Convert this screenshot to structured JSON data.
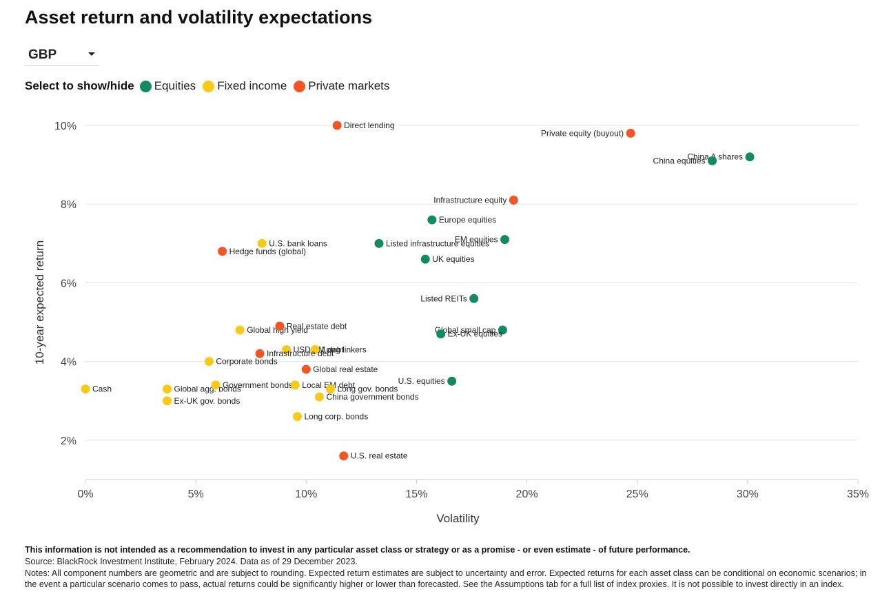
{
  "title": "Asset return and volatility expectations",
  "currency": {
    "selected": "GBP"
  },
  "legend": {
    "prompt": "Select to show/hide",
    "items": [
      {
        "label": "Equities",
        "color": "#128a62"
      },
      {
        "label": "Fixed income",
        "color": "#f7c919"
      },
      {
        "label": "Private markets",
        "color": "#f25626"
      }
    ]
  },
  "chart_data": {
    "type": "scatter",
    "xlabel": "Volatility",
    "ylabel": "10-year expected return",
    "xlim": [
      0,
      35
    ],
    "ylim": [
      1,
      10
    ],
    "x_ticks": [
      "0%",
      "5%",
      "10%",
      "15%",
      "20%",
      "25%",
      "30%",
      "35%"
    ],
    "y_ticks": [
      "2%",
      "4%",
      "6%",
      "8%",
      "10%"
    ],
    "grid": "horizontal",
    "series": [
      {
        "name": "Equities",
        "color": "#128a62",
        "points": [
          {
            "label": "China A shares",
            "x": 30.1,
            "y": 9.2
          },
          {
            "label": "China equities",
            "x": 28.4,
            "y": 9.1
          },
          {
            "label": "Europe equities",
            "x": 15.7,
            "y": 7.6
          },
          {
            "label": "EM equities",
            "x": 19.0,
            "y": 7.1
          },
          {
            "label": "Listed infrastructure equities",
            "x": 13.3,
            "y": 7.0
          },
          {
            "label": "UK equities",
            "x": 15.4,
            "y": 6.6
          },
          {
            "label": "Listed REITs",
            "x": 17.6,
            "y": 5.6
          },
          {
            "label": "Global small cap",
            "x": 18.9,
            "y": 4.8
          },
          {
            "label": "Ex-UK equities",
            "x": 16.1,
            "y": 4.7
          },
          {
            "label": "U.S. equities",
            "x": 16.6,
            "y": 3.5
          }
        ]
      },
      {
        "name": "Fixed income",
        "color": "#f7c919",
        "points": [
          {
            "label": "U.S. bank loans",
            "x": 8.0,
            "y": 7.0
          },
          {
            "label": "Global high yield",
            "x": 7.0,
            "y": 4.8
          },
          {
            "label": "USD EM debt",
            "x": 9.1,
            "y": 4.3
          },
          {
            "label": "Long linkers",
            "x": 10.4,
            "y": 4.3
          },
          {
            "label": "Corporate bonds",
            "x": 5.6,
            "y": 4.0
          },
          {
            "label": "Cash",
            "x": 0.0,
            "y": 3.3
          },
          {
            "label": "Global agg. bonds",
            "x": 3.7,
            "y": 3.3
          },
          {
            "label": "Government bonds",
            "x": 5.9,
            "y": 3.4
          },
          {
            "label": "Local EM debt",
            "x": 9.5,
            "y": 3.4
          },
          {
            "label": "Long gov. bonds",
            "x": 11.1,
            "y": 3.3
          },
          {
            "label": "China government bonds",
            "x": 10.6,
            "y": 3.1
          },
          {
            "label": "Ex-UK gov. bonds",
            "x": 3.7,
            "y": 3.0
          },
          {
            "label": "Long corp. bonds",
            "x": 9.6,
            "y": 2.6
          }
        ]
      },
      {
        "name": "Private markets",
        "color": "#f25626",
        "points": [
          {
            "label": "Direct lending",
            "x": 11.4,
            "y": 10.0
          },
          {
            "label": "Private equity (buyout)",
            "x": 24.7,
            "y": 9.8
          },
          {
            "label": "Infrastructure equity",
            "x": 19.4,
            "y": 8.1
          },
          {
            "label": "Hedge funds (global)",
            "x": 6.2,
            "y": 6.8
          },
          {
            "label": "Real estate debt",
            "x": 8.8,
            "y": 4.9
          },
          {
            "label": "Infrastructure debt",
            "x": 7.9,
            "y": 4.2
          },
          {
            "label": "Global real estate",
            "x": 10.0,
            "y": 3.8
          },
          {
            "label": "U.S. real estate",
            "x": 11.7,
            "y": 1.6
          }
        ]
      }
    ]
  },
  "footer": {
    "disclaimer": "This information is not intended as a recommendation to invest in any particular asset class or strategy or as a promise - or even estimate - of future performance.",
    "source": "Source: BlackRock Investment Institute, February 2024. Data as of 29 December 2023.",
    "notes": "Notes: All component numbers are geometric and are subject to rounding. Expected return estimates are subject to uncertainty and error. Expected returns for each asset class can be conditional on economic scenarios; in the event a particular scenario comes to pass, actual returns could be significantly higher or lower than forecasted. See the Assumptions tab for a full list of index proxies. It is not possible to invest directly in an index."
  }
}
